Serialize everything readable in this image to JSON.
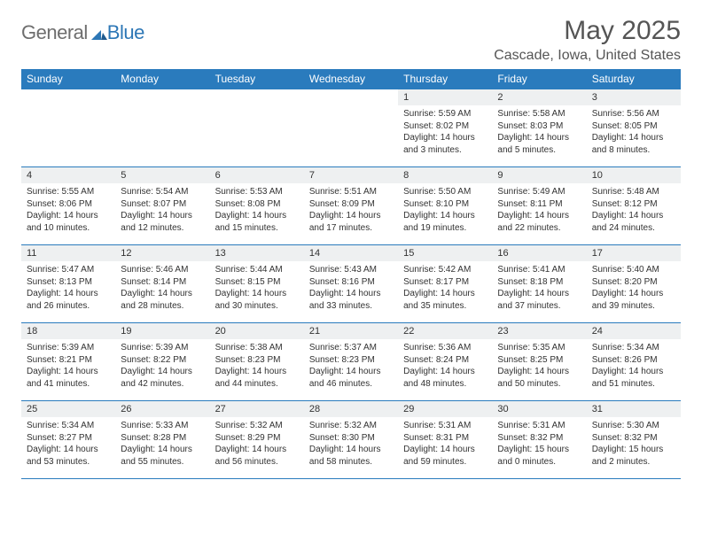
{
  "logo": {
    "word_a": "General",
    "word_b": "Blue"
  },
  "title": "May 2025",
  "location": "Cascade, Iowa, United States",
  "headers": [
    "Sunday",
    "Monday",
    "Tuesday",
    "Wednesday",
    "Thursday",
    "Friday",
    "Saturday"
  ],
  "colors": {
    "header_bg": "#2a7bbd",
    "header_text": "#ffffff",
    "daynum_bg": "#eef0f1",
    "rule": "#2a7bbd",
    "body_text": "#323232",
    "logo_gray": "#6e6e6e",
    "logo_blue": "#2d77b6"
  },
  "weeks": [
    [
      {
        "day": null
      },
      {
        "day": null
      },
      {
        "day": null
      },
      {
        "day": null
      },
      {
        "day": "1",
        "sunrise": "Sunrise: 5:59 AM",
        "sunset": "Sunset: 8:02 PM",
        "daylight": "Daylight: 14 hours and 3 minutes."
      },
      {
        "day": "2",
        "sunrise": "Sunrise: 5:58 AM",
        "sunset": "Sunset: 8:03 PM",
        "daylight": "Daylight: 14 hours and 5 minutes."
      },
      {
        "day": "3",
        "sunrise": "Sunrise: 5:56 AM",
        "sunset": "Sunset: 8:05 PM",
        "daylight": "Daylight: 14 hours and 8 minutes."
      }
    ],
    [
      {
        "day": "4",
        "sunrise": "Sunrise: 5:55 AM",
        "sunset": "Sunset: 8:06 PM",
        "daylight": "Daylight: 14 hours and 10 minutes."
      },
      {
        "day": "5",
        "sunrise": "Sunrise: 5:54 AM",
        "sunset": "Sunset: 8:07 PM",
        "daylight": "Daylight: 14 hours and 12 minutes."
      },
      {
        "day": "6",
        "sunrise": "Sunrise: 5:53 AM",
        "sunset": "Sunset: 8:08 PM",
        "daylight": "Daylight: 14 hours and 15 minutes."
      },
      {
        "day": "7",
        "sunrise": "Sunrise: 5:51 AM",
        "sunset": "Sunset: 8:09 PM",
        "daylight": "Daylight: 14 hours and 17 minutes."
      },
      {
        "day": "8",
        "sunrise": "Sunrise: 5:50 AM",
        "sunset": "Sunset: 8:10 PM",
        "daylight": "Daylight: 14 hours and 19 minutes."
      },
      {
        "day": "9",
        "sunrise": "Sunrise: 5:49 AM",
        "sunset": "Sunset: 8:11 PM",
        "daylight": "Daylight: 14 hours and 22 minutes."
      },
      {
        "day": "10",
        "sunrise": "Sunrise: 5:48 AM",
        "sunset": "Sunset: 8:12 PM",
        "daylight": "Daylight: 14 hours and 24 minutes."
      }
    ],
    [
      {
        "day": "11",
        "sunrise": "Sunrise: 5:47 AM",
        "sunset": "Sunset: 8:13 PM",
        "daylight": "Daylight: 14 hours and 26 minutes."
      },
      {
        "day": "12",
        "sunrise": "Sunrise: 5:46 AM",
        "sunset": "Sunset: 8:14 PM",
        "daylight": "Daylight: 14 hours and 28 minutes."
      },
      {
        "day": "13",
        "sunrise": "Sunrise: 5:44 AM",
        "sunset": "Sunset: 8:15 PM",
        "daylight": "Daylight: 14 hours and 30 minutes."
      },
      {
        "day": "14",
        "sunrise": "Sunrise: 5:43 AM",
        "sunset": "Sunset: 8:16 PM",
        "daylight": "Daylight: 14 hours and 33 minutes."
      },
      {
        "day": "15",
        "sunrise": "Sunrise: 5:42 AM",
        "sunset": "Sunset: 8:17 PM",
        "daylight": "Daylight: 14 hours and 35 minutes."
      },
      {
        "day": "16",
        "sunrise": "Sunrise: 5:41 AM",
        "sunset": "Sunset: 8:18 PM",
        "daylight": "Daylight: 14 hours and 37 minutes."
      },
      {
        "day": "17",
        "sunrise": "Sunrise: 5:40 AM",
        "sunset": "Sunset: 8:20 PM",
        "daylight": "Daylight: 14 hours and 39 minutes."
      }
    ],
    [
      {
        "day": "18",
        "sunrise": "Sunrise: 5:39 AM",
        "sunset": "Sunset: 8:21 PM",
        "daylight": "Daylight: 14 hours and 41 minutes."
      },
      {
        "day": "19",
        "sunrise": "Sunrise: 5:39 AM",
        "sunset": "Sunset: 8:22 PM",
        "daylight": "Daylight: 14 hours and 42 minutes."
      },
      {
        "day": "20",
        "sunrise": "Sunrise: 5:38 AM",
        "sunset": "Sunset: 8:23 PM",
        "daylight": "Daylight: 14 hours and 44 minutes."
      },
      {
        "day": "21",
        "sunrise": "Sunrise: 5:37 AM",
        "sunset": "Sunset: 8:23 PM",
        "daylight": "Daylight: 14 hours and 46 minutes."
      },
      {
        "day": "22",
        "sunrise": "Sunrise: 5:36 AM",
        "sunset": "Sunset: 8:24 PM",
        "daylight": "Daylight: 14 hours and 48 minutes."
      },
      {
        "day": "23",
        "sunrise": "Sunrise: 5:35 AM",
        "sunset": "Sunset: 8:25 PM",
        "daylight": "Daylight: 14 hours and 50 minutes."
      },
      {
        "day": "24",
        "sunrise": "Sunrise: 5:34 AM",
        "sunset": "Sunset: 8:26 PM",
        "daylight": "Daylight: 14 hours and 51 minutes."
      }
    ],
    [
      {
        "day": "25",
        "sunrise": "Sunrise: 5:34 AM",
        "sunset": "Sunset: 8:27 PM",
        "daylight": "Daylight: 14 hours and 53 minutes."
      },
      {
        "day": "26",
        "sunrise": "Sunrise: 5:33 AM",
        "sunset": "Sunset: 8:28 PM",
        "daylight": "Daylight: 14 hours and 55 minutes."
      },
      {
        "day": "27",
        "sunrise": "Sunrise: 5:32 AM",
        "sunset": "Sunset: 8:29 PM",
        "daylight": "Daylight: 14 hours and 56 minutes."
      },
      {
        "day": "28",
        "sunrise": "Sunrise: 5:32 AM",
        "sunset": "Sunset: 8:30 PM",
        "daylight": "Daylight: 14 hours and 58 minutes."
      },
      {
        "day": "29",
        "sunrise": "Sunrise: 5:31 AM",
        "sunset": "Sunset: 8:31 PM",
        "daylight": "Daylight: 14 hours and 59 minutes."
      },
      {
        "day": "30",
        "sunrise": "Sunrise: 5:31 AM",
        "sunset": "Sunset: 8:32 PM",
        "daylight": "Daylight: 15 hours and 0 minutes."
      },
      {
        "day": "31",
        "sunrise": "Sunrise: 5:30 AM",
        "sunset": "Sunset: 8:32 PM",
        "daylight": "Daylight: 15 hours and 2 minutes."
      }
    ]
  ]
}
